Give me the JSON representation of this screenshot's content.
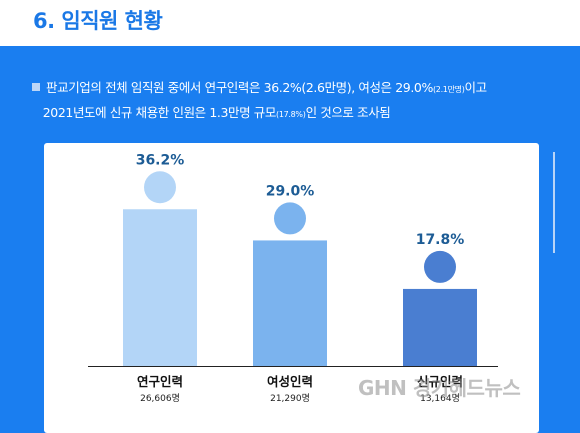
{
  "header": {
    "title": "6. 임직원 현황"
  },
  "description": {
    "line1_a": "판교기업의 전체 임직원 중에서 연구인력은 36.2%(2.6만명), 여성은 29.0%",
    "line1_small": "(2.1만명)",
    "line1_b": "이고",
    "line2_a": "2021년도에 신규 채용한 인원은 1.3만명 규모",
    "line2_small": "(17.8%)",
    "line2_b": "인 것으로 조사됨"
  },
  "colors": {
    "background": "#1a7ef0",
    "bar_research": "#b3d5f7",
    "bar_women": "#7bb3ee",
    "bar_new": "#4a7ed1",
    "value_text": "#1d5c95"
  },
  "chart_data": {
    "type": "bar",
    "categories": [
      "연구인력",
      "여성인력",
      "신규인력"
    ],
    "values": [
      36.2,
      29.0,
      17.8
    ],
    "value_labels": [
      "36.2%",
      "29.0%",
      "17.8%"
    ],
    "sub_labels": [
      "26,606명",
      "21,290명",
      "13,164명"
    ],
    "ylim": [
      0,
      40
    ],
    "grid": false,
    "title": "",
    "xlabel": "",
    "ylabel": ""
  },
  "watermark": {
    "text": "GHN 경기헤드뉴스"
  }
}
